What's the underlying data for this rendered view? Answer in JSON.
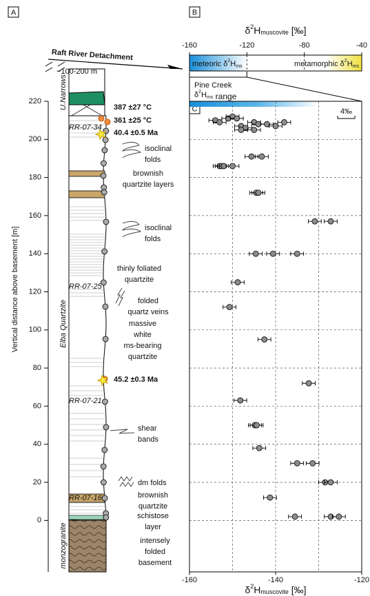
{
  "panel_labels": [
    "A",
    "B",
    "C"
  ],
  "column": {
    "detachment": "Raft River Detachment",
    "gap": "~100-200 m",
    "units": [
      "U.Narrows",
      "Elba Quartzite",
      "monzogranite"
    ],
    "annotations": [
      {
        "lines": [
          "387 ±27 °C"
        ]
      },
      {
        "lines": [
          "361 ±25 °C"
        ]
      },
      {
        "lines": [
          "RR-07-34"
        ]
      },
      {
        "lines": [
          "40.4 ±0.5 Ma"
        ]
      },
      {
        "lines": [
          "isoclinal",
          "folds"
        ]
      },
      {
        "lines": [
          "brownish",
          "quartzite layers"
        ]
      },
      {
        "lines": [
          "isoclinal",
          "folds"
        ]
      },
      {
        "lines": [
          "thinly foliated",
          "quartzite"
        ]
      },
      {
        "lines": [
          "RR-07-25"
        ]
      },
      {
        "lines": [
          "folded",
          "quartz veins"
        ]
      },
      {
        "lines": [
          "massive",
          "white",
          "ms-bearing",
          "quartzite"
        ]
      },
      {
        "lines": [
          "45.2 ±0.3 Ma"
        ]
      },
      {
        "lines": [
          "RR-07-21"
        ]
      },
      {
        "lines": [
          "shear",
          "bands"
        ]
      },
      {
        "lines": [
          "dm folds"
        ]
      },
      {
        "lines": [
          "brownish",
          "quartzite"
        ]
      },
      {
        "lines": [
          "RR-07-16"
        ]
      },
      {
        "lines": [
          "schistose",
          "layer"
        ]
      },
      {
        "lines": [
          "intensely",
          "folded",
          "basement"
        ]
      }
    ]
  },
  "chart_data": [
    {
      "type": "range",
      "title": {
        "d": "δ",
        "sup": "2",
        "h": "H",
        "sub": "muscovite",
        "unit": " [‰]"
      },
      "xlim": [
        -160,
        -40
      ],
      "xticks": [
        -160,
        -120,
        -80,
        -40
      ],
      "ranges": [
        {
          "name": "meteoric ",
          "symbol": {
            "d": "δ",
            "sup": "2",
            "h": "H",
            "sub": "ms"
          },
          "from": -160,
          "to": -120,
          "color": "#1a8fd8"
        },
        {
          "name": "metamorphic ",
          "symbol": {
            "d": "δ",
            "sup": "2",
            "h": "H",
            "sub": "ms"
          },
          "from": -65,
          "to": -40,
          "color": "#f0e040"
        }
      ],
      "bracket": {
        "name": "Pine Creek",
        "symbol": {
          "d": "δ",
          "sup": "2",
          "h": "H",
          "sub": "ms"
        },
        "suffix": " range",
        "from": -160,
        "to": -120
      }
    },
    {
      "type": "scatter",
      "xlabel": {
        "d": "δ",
        "sup": "2",
        "h": "H",
        "sub": "muscovite",
        "unit": " [‰]"
      },
      "ylabel": "Vertical distance above basement [m]",
      "xlim": [
        -160,
        -120
      ],
      "xticks": [
        -160,
        -140,
        -120
      ],
      "minor_xticks": [
        -150,
        -130
      ],
      "ylim": [
        -27,
        220
      ],
      "yticks": [
        0,
        20,
        40,
        60,
        80,
        100,
        120,
        140,
        160,
        180,
        200,
        220
      ],
      "grid": true,
      "color": "#8c8c8c",
      "scale_bar": {
        "value": 4,
        "label": "4‰"
      },
      "x": [
        -154,
        -153,
        -151,
        -150,
        -149,
        -148,
        -147,
        -145,
        -144,
        -142,
        -140,
        -138,
        -148,
        -145,
        -145.6,
        -143.2,
        -153,
        -152.5,
        -152,
        -150,
        -144.5,
        -144,
        -130.9,
        -127.2,
        -144.6,
        -140.6,
        -135,
        -148.8,
        -150.7,
        -142.6,
        -132.3,
        -148.2,
        -144.8,
        -144.4,
        -143.8,
        -135,
        -131.4,
        -128.5,
        -127.2,
        -141.3,
        -135.5,
        -127.2,
        -125.3
      ],
      "values": [
        210,
        209,
        211,
        212,
        211,
        207,
        206,
        209,
        208,
        208,
        207,
        209,
        205,
        205,
        191,
        191,
        186,
        186,
        186,
        186,
        172,
        172,
        157,
        157,
        140,
        140,
        140,
        125,
        112,
        95,
        72,
        63,
        50,
        50,
        38,
        30,
        30,
        20,
        20,
        12,
        2,
        2,
        2
      ],
      "xerr": [
        1.5,
        1.5,
        1.5,
        1.5,
        1.5,
        1.5,
        1.5,
        1.5,
        1.5,
        1.5,
        1.5,
        1.5,
        1.5,
        1.5,
        1.5,
        1.5,
        1.5,
        1.5,
        1.5,
        1.5,
        1.5,
        1.5,
        1.5,
        1.5,
        1.5,
        1.5,
        1.5,
        1.5,
        1.5,
        1.5,
        1.5,
        1.5,
        1.5,
        1.5,
        1.5,
        1.5,
        1.5,
        1.5,
        1.5,
        1.5,
        1.5,
        1.5,
        1.5
      ]
    }
  ]
}
